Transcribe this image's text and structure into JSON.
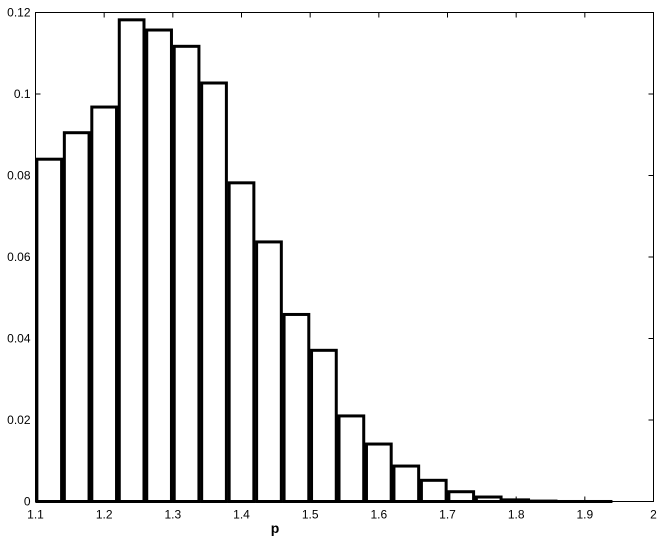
{
  "chart_data": {
    "type": "bar",
    "title": "",
    "xlabel": "p",
    "ylabel": "",
    "xlim": [
      1.1,
      2.0
    ],
    "ylim": [
      0,
      0.12
    ],
    "bar_width": 0.036,
    "grid": false,
    "x": [
      1.12,
      1.16,
      1.2,
      1.24,
      1.28,
      1.32,
      1.36,
      1.4,
      1.44,
      1.48,
      1.52,
      1.56,
      1.6,
      1.64,
      1.68,
      1.72,
      1.76,
      1.8,
      1.84,
      1.88,
      1.92
    ],
    "values": [
      0.084,
      0.0905,
      0.0968,
      0.1182,
      0.1157,
      0.1117,
      0.1027,
      0.0782,
      0.0637,
      0.0459,
      0.0371,
      0.021,
      0.0141,
      0.0087,
      0.0052,
      0.0024,
      0.0011,
      0.0004,
      0.0001,
      0.0,
      0.0
    ],
    "xticks": [
      1.1,
      1.2,
      1.3,
      1.4,
      1.5,
      1.6,
      1.7,
      1.8,
      1.9,
      2.0
    ],
    "xtick_labels": [
      "1.1",
      "1.2",
      "1.3",
      "1.4",
      "1.5",
      "1.6",
      "1.7",
      "1.8",
      "1.9",
      "2"
    ],
    "yticks": [
      0,
      0.02,
      0.04,
      0.06,
      0.08,
      0.1,
      0.12
    ],
    "ytick_labels": [
      "0",
      "0.02",
      "0.04",
      "0.06",
      "0.08",
      "0.1",
      "0.12"
    ],
    "colors": {
      "bar_fill": "#ffffff",
      "bar_edge": "#000000",
      "axes": "#000000"
    }
  }
}
